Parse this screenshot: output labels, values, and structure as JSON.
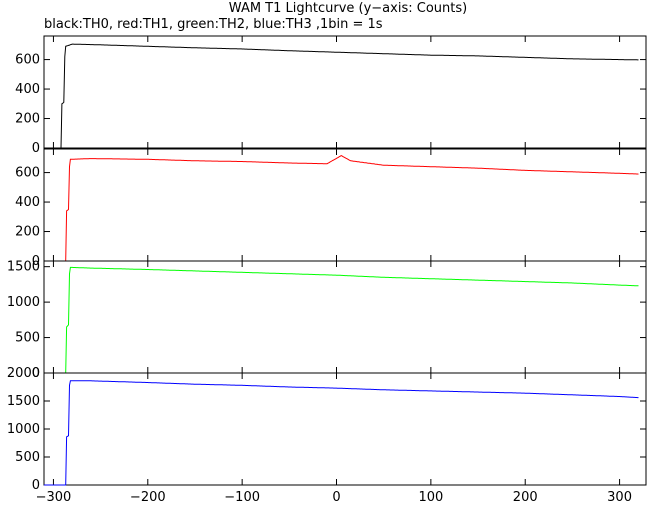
{
  "chart_data": {
    "type": "line",
    "title": "WAM T1 Lightcurve (y−axis: Counts)",
    "subtitle": "black:TH0, red:TH1, green:TH2, blue:TH3 ,1bin = 1s",
    "x_range": [
      -310,
      328
    ],
    "x_ticks": [
      -300,
      -200,
      -100,
      0,
      100,
      200,
      300
    ],
    "x_tick_labels": [
      "−300",
      "−200",
      "−100",
      "0",
      "100",
      "200",
      "300"
    ],
    "panels": [
      {
        "name": "TH0",
        "color": "#000000",
        "ylim": [
          0,
          760
        ],
        "yticks": [
          0,
          200,
          400,
          600
        ],
        "values": [
          [
            -310,
            0
          ],
          [
            -292,
            0
          ],
          [
            -291,
            300
          ],
          [
            -289,
            310
          ],
          [
            -288,
            620
          ],
          [
            -287,
            690
          ],
          [
            -280,
            705
          ],
          [
            -250,
            700
          ],
          [
            -200,
            690
          ],
          [
            -150,
            680
          ],
          [
            -100,
            672
          ],
          [
            -50,
            660
          ],
          [
            0,
            650
          ],
          [
            50,
            640
          ],
          [
            100,
            630
          ],
          [
            150,
            625
          ],
          [
            200,
            615
          ],
          [
            250,
            605
          ],
          [
            300,
            600
          ],
          [
            320,
            598
          ]
        ]
      },
      {
        "name": "TH1",
        "color": "#ff0000",
        "ylim": [
          0,
          760
        ],
        "yticks": [
          0,
          200,
          400,
          600
        ],
        "values": [
          [
            -310,
            0
          ],
          [
            -287,
            0
          ],
          [
            -286,
            340
          ],
          [
            -284,
            350
          ],
          [
            -283,
            640
          ],
          [
            -282,
            690
          ],
          [
            -260,
            695
          ],
          [
            -200,
            690
          ],
          [
            -150,
            680
          ],
          [
            -100,
            675
          ],
          [
            -50,
            665
          ],
          [
            -10,
            660
          ],
          [
            5,
            715
          ],
          [
            15,
            680
          ],
          [
            50,
            650
          ],
          [
            100,
            640
          ],
          [
            150,
            630
          ],
          [
            200,
            615
          ],
          [
            250,
            605
          ],
          [
            300,
            595
          ],
          [
            320,
            590
          ]
        ]
      },
      {
        "name": "TH2",
        "color": "#00ff00",
        "ylim": [
          0,
          1580
        ],
        "yticks": [
          0,
          500,
          1000,
          1500
        ],
        "values": [
          [
            -310,
            0
          ],
          [
            -287,
            0
          ],
          [
            -286,
            650
          ],
          [
            -284,
            680
          ],
          [
            -283,
            1400
          ],
          [
            -282,
            1490
          ],
          [
            -260,
            1480
          ],
          [
            -200,
            1460
          ],
          [
            -150,
            1440
          ],
          [
            -100,
            1420
          ],
          [
            -50,
            1400
          ],
          [
            0,
            1380
          ],
          [
            50,
            1350
          ],
          [
            100,
            1330
          ],
          [
            150,
            1310
          ],
          [
            200,
            1290
          ],
          [
            250,
            1270
          ],
          [
            300,
            1240
          ],
          [
            320,
            1230
          ]
        ]
      },
      {
        "name": "TH3",
        "color": "#0000ff",
        "ylim": [
          0,
          2000
        ],
        "yticks": [
          0,
          500,
          1000,
          1500,
          2000
        ],
        "values": [
          [
            -310,
            0
          ],
          [
            -287,
            0
          ],
          [
            -286,
            860
          ],
          [
            -284,
            880
          ],
          [
            -283,
            1780
          ],
          [
            -282,
            1860
          ],
          [
            -260,
            1860
          ],
          [
            -200,
            1830
          ],
          [
            -150,
            1800
          ],
          [
            -100,
            1780
          ],
          [
            -50,
            1750
          ],
          [
            0,
            1730
          ],
          [
            50,
            1700
          ],
          [
            100,
            1680
          ],
          [
            150,
            1660
          ],
          [
            200,
            1640
          ],
          [
            250,
            1610
          ],
          [
            300,
            1580
          ],
          [
            320,
            1560
          ]
        ]
      }
    ],
    "grid": false,
    "legend": "none"
  }
}
